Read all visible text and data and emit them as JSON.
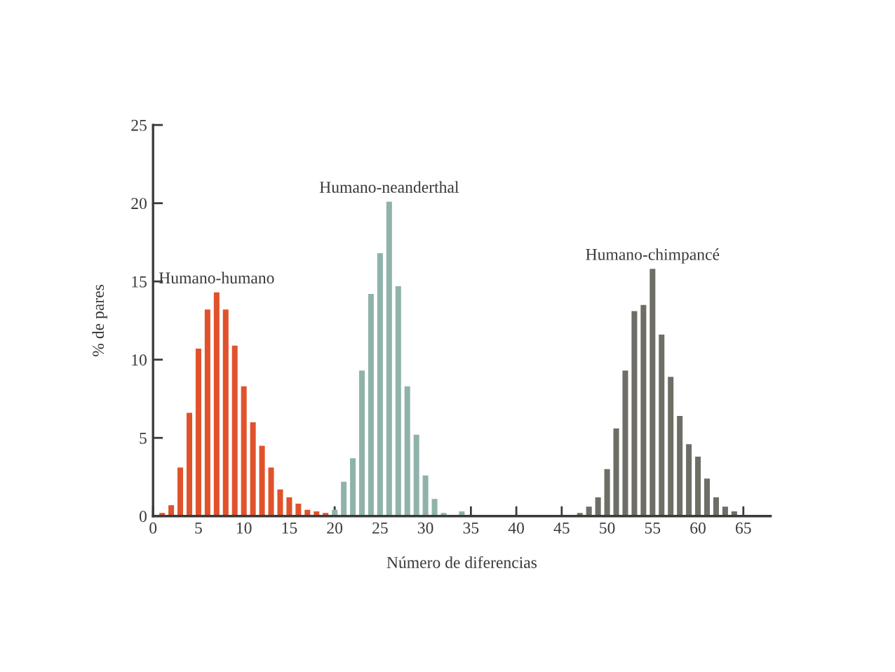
{
  "chart_data": {
    "type": "bar",
    "xlabel": "Número de diferencias",
    "ylabel": "% de pares",
    "xlim": [
      0,
      68
    ],
    "ylim": [
      0,
      25
    ],
    "xticks": [
      0,
      5,
      10,
      15,
      20,
      25,
      30,
      35,
      40,
      45,
      50,
      55,
      60,
      65
    ],
    "yticks": [
      0,
      5,
      10,
      15,
      20,
      25
    ],
    "series": [
      {
        "name": "Humano-humano",
        "color": "#e0522c",
        "x": [
          1,
          2,
          3,
          4,
          5,
          6,
          7,
          8,
          9,
          10,
          11,
          12,
          13,
          14,
          15,
          16,
          17,
          18,
          19
        ],
        "values": [
          0.2,
          0.7,
          3.1,
          6.6,
          10.7,
          13.2,
          14.3,
          13.2,
          10.9,
          8.3,
          6.0,
          4.5,
          3.1,
          1.7,
          1.2,
          0.8,
          0.4,
          0.3,
          0.2
        ]
      },
      {
        "name": "Humano-neanderthal",
        "color": "#8fb3aa",
        "x": [
          20,
          21,
          22,
          23,
          24,
          25,
          26,
          27,
          28,
          29,
          30,
          31,
          32,
          34
        ],
        "values": [
          0.4,
          2.2,
          3.7,
          9.3,
          14.2,
          16.8,
          20.1,
          14.7,
          8.3,
          5.2,
          2.6,
          1.1,
          0.2,
          0.3
        ]
      },
      {
        "name": "Humano-chimpancé",
        "color": "#6e6e66",
        "x": [
          47,
          48,
          49,
          50,
          51,
          52,
          53,
          54,
          55,
          56,
          57,
          58,
          59,
          60,
          61,
          62,
          63,
          64
        ],
        "values": [
          0.2,
          0.6,
          1.2,
          3.0,
          5.6,
          9.3,
          13.1,
          13.5,
          15.8,
          11.6,
          8.9,
          6.4,
          4.6,
          3.8,
          2.4,
          1.2,
          0.6,
          0.3
        ]
      }
    ]
  }
}
